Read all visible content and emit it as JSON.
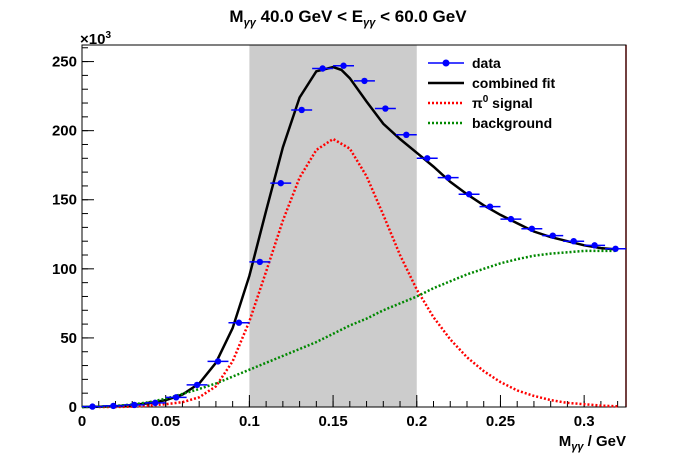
{
  "chart_data": {
    "type": "scatter",
    "title": {
      "prefix": "M",
      "prefix_sub": "γγ",
      "mid": " 40.0 GeV < E",
      "mid_sub": "γγ",
      "suffix": " < 60.0 GeV"
    },
    "xlabel": {
      "main": "M",
      "sub": "γγ",
      "rest": " / GeV"
    },
    "ylabel": "",
    "y_multiplier": {
      "base": "×10",
      "exp": "3"
    },
    "xlim": [
      0,
      0.325
    ],
    "ylim": [
      0,
      262
    ],
    "x_ticks": [
      0,
      0.05,
      0.1,
      0.15,
      0.2,
      0.25,
      0.3
    ],
    "x_tick_labels": [
      "0",
      "0.05",
      "0.1",
      "0.15",
      "0.2",
      "0.25",
      "0.3"
    ],
    "y_ticks": [
      0,
      50,
      100,
      150,
      200,
      250
    ],
    "y_tick_labels": [
      "0",
      "50",
      "100",
      "150",
      "200",
      "250"
    ],
    "grid": false,
    "legend_position": "top-right",
    "legend": [
      {
        "label": "data",
        "style": "marker-line",
        "color": "#0000ff"
      },
      {
        "label": "combined fit",
        "style": "solid",
        "color": "#000000"
      },
      {
        "label_main": "π",
        "label_sup": "0",
        "label_rest": " signal",
        "style": "dotted",
        "color": "#ff0000"
      },
      {
        "label": "background",
        "style": "dotted",
        "color": "#008800"
      }
    ],
    "shaded_region": {
      "x": [
        0.1,
        0.2
      ],
      "color": "#cccccc"
    },
    "x_bin_halfwidth": 0.00625,
    "series": [
      {
        "name": "data",
        "x": [
          0.00625,
          0.01875,
          0.03125,
          0.04375,
          0.05625,
          0.06875,
          0.08125,
          0.09375,
          0.10625,
          0.11875,
          0.13125,
          0.14375,
          0.15625,
          0.16875,
          0.18125,
          0.19375,
          0.20625,
          0.21875,
          0.23125,
          0.24375,
          0.25625,
          0.26875,
          0.28125,
          0.29375,
          0.30625,
          0.31875
        ],
        "values": [
          0.3,
          0.8,
          1.5,
          3,
          7,
          16,
          33,
          61,
          105,
          162,
          215,
          245,
          247,
          236,
          216,
          197,
          180,
          166,
          154,
          145,
          136,
          129,
          124,
          120,
          117,
          114.5
        ]
      },
      {
        "name": "combined fit",
        "x": [
          0,
          0.01,
          0.02,
          0.03,
          0.04,
          0.05,
          0.06,
          0.07,
          0.08,
          0.09,
          0.1,
          0.11,
          0.12,
          0.13,
          0.14,
          0.15,
          0.155,
          0.16,
          0.17,
          0.18,
          0.19,
          0.2,
          0.21,
          0.22,
          0.23,
          0.24,
          0.25,
          0.26,
          0.27,
          0.28,
          0.29,
          0.3,
          0.31,
          0.32
        ],
        "values": [
          0,
          0.2,
          0.6,
          1.4,
          2.8,
          5,
          9,
          17,
          32,
          57,
          95,
          142,
          188,
          224,
          243,
          246,
          244,
          238,
          221,
          205,
          194,
          184,
          174,
          163,
          154,
          146,
          139,
          133,
          127,
          123,
          120,
          117,
          115,
          114
        ]
      },
      {
        "name": "π0 signal",
        "x": [
          0.01,
          0.02,
          0.03,
          0.04,
          0.05,
          0.06,
          0.07,
          0.08,
          0.09,
          0.1,
          0.11,
          0.12,
          0.13,
          0.14,
          0.15,
          0.16,
          0.17,
          0.18,
          0.19,
          0.2,
          0.21,
          0.22,
          0.23,
          0.24,
          0.25,
          0.26,
          0.27,
          0.28,
          0.29,
          0.3,
          0.31,
          0.32
        ],
        "values": [
          0,
          0,
          0.3,
          1,
          2,
          3.5,
          7,
          15,
          33,
          62,
          98,
          135,
          166,
          186,
          194,
          187,
          167,
          139,
          110,
          85,
          65,
          49,
          36,
          26,
          18,
          12,
          8,
          5,
          3,
          2,
          1,
          0.5
        ]
      },
      {
        "name": "background",
        "x": [
          0,
          0.01,
          0.02,
          0.03,
          0.04,
          0.05,
          0.06,
          0.07,
          0.08,
          0.09,
          0.1,
          0.11,
          0.12,
          0.13,
          0.14,
          0.15,
          0.16,
          0.17,
          0.18,
          0.19,
          0.2,
          0.21,
          0.22,
          0.23,
          0.24,
          0.25,
          0.26,
          0.27,
          0.28,
          0.29,
          0.3,
          0.31,
          0.32
        ],
        "values": [
          0,
          0.3,
          0.8,
          1.8,
          3.5,
          6,
          9.5,
          13,
          17,
          22,
          27,
          32,
          37,
          42,
          47,
          53,
          59,
          64,
          70,
          75,
          80,
          86,
          91,
          96,
          100,
          104,
          107,
          109.5,
          111,
          112,
          113,
          113,
          113
        ]
      }
    ]
  }
}
